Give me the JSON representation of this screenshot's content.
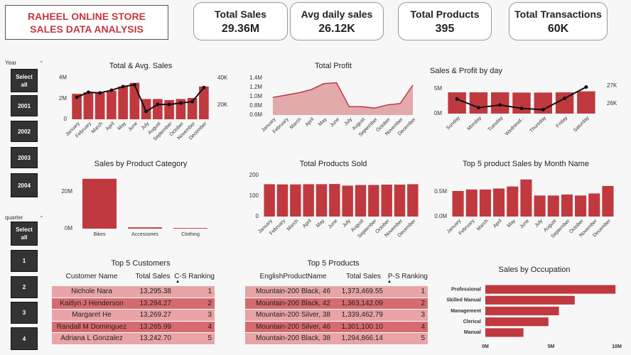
{
  "header": {
    "title": "RAHEEL ONLINE STORE SALES DATA ANALYSIS"
  },
  "kpis": [
    {
      "label": "Total Sales",
      "value": "29.36M"
    },
    {
      "label": "Avg daily sales",
      "value": "26.12K"
    },
    {
      "label": "Total Products",
      "value": "395"
    },
    {
      "label": "Total Transactions",
      "value": "60K"
    }
  ],
  "slicers": [
    {
      "label": "Year",
      "options": [
        "Select all",
        "2001",
        "2002",
        "2003",
        "2004"
      ]
    },
    {
      "label": "quarter",
      "options": [
        "Select all",
        "1",
        "2",
        "3",
        "4"
      ]
    }
  ],
  "chart_data": [
    {
      "type": "combo",
      "title": "Total & Avg. Sales",
      "categories": [
        "January",
        "February",
        "March",
        "April",
        "May",
        "June",
        "July",
        "August",
        "September",
        "October",
        "November",
        "December"
      ],
      "series": [
        {
          "type": "bar",
          "color": "#c0393f",
          "values": [
            2450000,
            2600000,
            2550000,
            2750000,
            3150000,
            3500000,
            1950000,
            1950000,
            1850000,
            1950000,
            2050000,
            3150000
          ]
        },
        {
          "type": "line",
          "axis": "y2",
          "color": "#111111",
          "values": [
            25800,
            29500,
            29000,
            31000,
            33700,
            35000,
            15300,
            20500,
            20500,
            21500,
            22600,
            33000
          ]
        }
      ],
      "ylim": [
        0,
        4300000
      ],
      "yticks": [
        0,
        {
          "value": 2000000,
          "label": "2M"
        },
        {
          "value": 4000000,
          "label": "4M"
        }
      ],
      "y2lim": [
        9500,
        42600
      ],
      "y2ticks": [
        {
          "value": 20000,
          "label": "20K"
        },
        {
          "value": 40000,
          "label": "40K"
        }
      ]
    },
    {
      "type": "area",
      "title": "Total Profit",
      "categories": [
        "January",
        "February",
        "March",
        "April",
        "May",
        "June",
        "July",
        "August",
        "September",
        "October",
        "November",
        "December"
      ],
      "series": [
        {
          "color": "#c0393f",
          "fill": "#e3aaab",
          "values": [
            980000,
            1030000,
            1080000,
            1150000,
            1280000,
            1300000,
            780000,
            780000,
            750000,
            820000,
            850000,
            1250000
          ]
        }
      ],
      "ylim": [
        600000,
        1400000
      ],
      "yticks": [
        {
          "value": 600000,
          "label": "0.6M"
        },
        {
          "value": 800000,
          "label": "0.8M"
        },
        {
          "value": 1000000,
          "label": "1.0M"
        },
        {
          "value": 1200000,
          "label": "1.2M"
        },
        {
          "value": 1400000,
          "label": "1.4M"
        }
      ]
    },
    {
      "type": "combo",
      "title": "Sales & Profit by day",
      "categories": [
        "Sunday",
        "Monday",
        "Tuesday",
        "Wednesd...",
        "Thursday",
        "Friday",
        "Saturday"
      ],
      "series": [
        {
          "type": "bar",
          "color": "#c0393f",
          "values": [
            4250000,
            4250000,
            4250000,
            4200000,
            4200000,
            4250000,
            4450000
          ]
        },
        {
          "type": "line",
          "axis": "y2",
          "color": "#111111",
          "values": [
            26260,
            25780,
            25930,
            25740,
            25670,
            26300,
            26930
          ]
        }
      ],
      "ylim": [
        0,
        6100000
      ],
      "yticks": [
        {
          "value": 0,
          "label": "0M"
        },
        {
          "value": 5000000,
          "label": "5M"
        }
      ],
      "y2lim": [
        25450,
        27150
      ],
      "y2ticks": [
        {
          "value": 26000,
          "label": "26K"
        },
        {
          "value": 27000,
          "label": "27K"
        }
      ]
    },
    {
      "type": "bar",
      "title": "Sales by Product Category",
      "categories": [
        "Bikes",
        "Accessories",
        "Clothing"
      ],
      "series": [
        {
          "color": "#c0393f",
          "values": [
            27000000,
            700000,
            340000
          ]
        }
      ],
      "ylim": [
        0,
        30000000
      ],
      "yticks": [
        {
          "value": 0,
          "label": "0M"
        },
        {
          "value": 20000000,
          "label": "20M"
        }
      ]
    },
    {
      "type": "bar",
      "title": "Total Products Sold",
      "categories": [
        "January",
        "February",
        "March",
        "April",
        "May",
        "June",
        "July",
        "August",
        "September",
        "October",
        "November",
        "December"
      ],
      "series": [
        {
          "color": "#c0393f",
          "values": [
            157,
            156,
            156,
            157,
            157,
            158,
            150,
            153,
            153,
            155,
            155,
            157
          ]
        }
      ],
      "ylim": [
        0,
        217
      ],
      "yticks": [
        0,
        100,
        200
      ]
    },
    {
      "type": "bar",
      "title": "Top 5 product Sales by Month Name",
      "categories": [
        "January",
        "February",
        "March",
        "April",
        "May",
        "June",
        "July",
        "August",
        "September",
        "October",
        "November",
        "December"
      ],
      "series": [
        {
          "color": "#c0393f",
          "values": [
            510000,
            540000,
            540000,
            560000,
            600000,
            740000,
            420000,
            420000,
            440000,
            420000,
            460000,
            610000
          ]
        }
      ],
      "ylim": [
        0,
        850000
      ],
      "yticks": [
        {
          "value": 0,
          "label": "0.0M"
        },
        {
          "value": 500000,
          "label": "0.5M"
        }
      ]
    },
    {
      "type": "barh",
      "title": "Sales by Occupation",
      "categories": [
        "Professional",
        "Skilled Manual",
        "Management",
        "Clerical",
        "Manual"
      ],
      "series": [
        {
          "color": "#c0393f",
          "values": [
            9900000,
            6800000,
            5600000,
            4800000,
            2900000
          ]
        }
      ],
      "xlim": [
        0,
        10000000
      ],
      "xticks": [
        {
          "value": 0,
          "label": "0M"
        },
        {
          "value": 5000000,
          "label": "5M"
        },
        {
          "value": 10000000,
          "label": "10M"
        }
      ]
    }
  ],
  "tables": [
    {
      "title": "Top 5 Customers",
      "columns": [
        "Customer Name",
        "Total Sales",
        "C-S Ranking"
      ],
      "rows": [
        [
          "Nichole Nara",
          "13,295.38",
          1
        ],
        [
          "Kaitlyn J Henderson",
          "13,294.27",
          2
        ],
        [
          "Margaret He",
          "13,269.27",
          3
        ],
        [
          "Randall M Dominguez",
          "13,265.99",
          4
        ],
        [
          "Adriana L Gonzalez",
          "13,242.70",
          5
        ]
      ]
    },
    {
      "title": "Top 5 Products",
      "columns": [
        "EnglishProductName",
        "Total Sales",
        "P-S Ranking"
      ],
      "rows": [
        [
          "Mountain-200 Black, 46",
          "1,373,469.55",
          1
        ],
        [
          "Mountain-200 Black, 42",
          "1,363,142.09",
          2
        ],
        [
          "Mountain-200 Silver, 38",
          "1,339,462.79",
          3
        ],
        [
          "Mountain-200 Silver, 46",
          "1,301,100.10",
          4
        ],
        [
          "Mountain-200 Black, 38",
          "1,294,866.14",
          5
        ]
      ]
    }
  ]
}
